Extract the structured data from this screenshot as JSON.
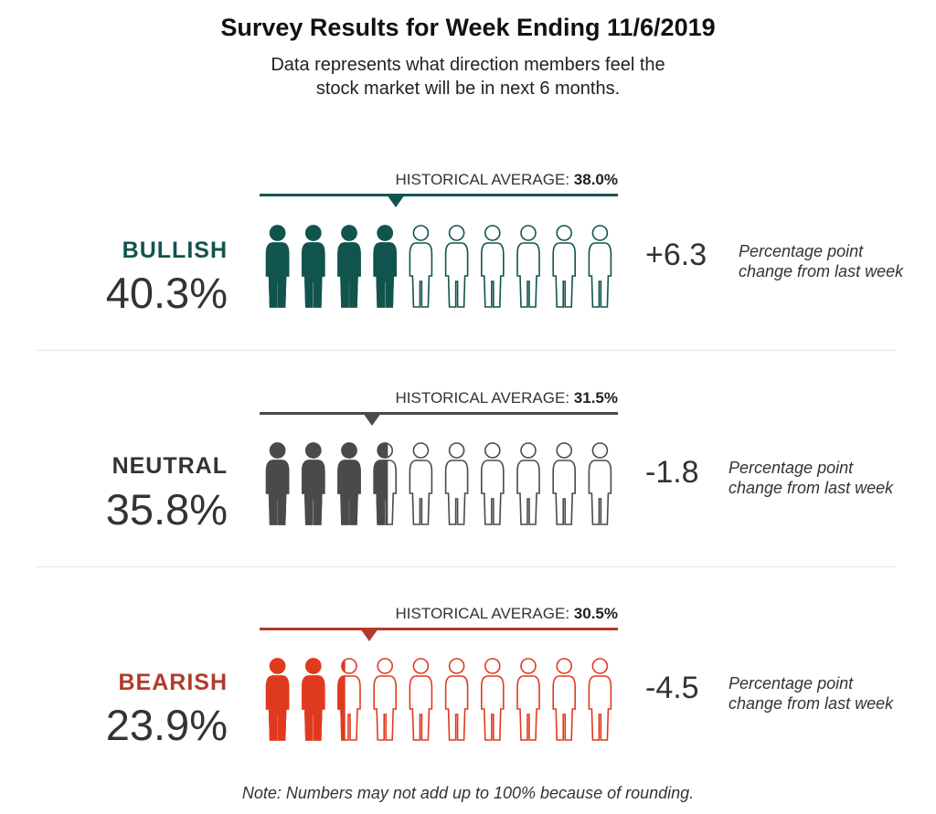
{
  "header": {
    "title": "Survey Results for Week Ending 11/6/2019",
    "subtitle": "Data represents what direction members feel the stock market will be in next 6 months."
  },
  "chart_data": {
    "type": "pictograph",
    "figures_per_row": 10,
    "percent_per_figure": 10,
    "historical_label": "HISTORICAL AVERAGE:",
    "change_note": "Percentage point change from last week",
    "categories": [
      {
        "name": "BULLISH",
        "value": 40.3,
        "value_label": "40.3%",
        "historical_average": 38.0,
        "historical_label_value": "38.0%",
        "change": 6.3,
        "change_label": "+6.3",
        "color": "#11544e"
      },
      {
        "name": "NEUTRAL",
        "value": 35.8,
        "value_label": "35.8%",
        "historical_average": 31.5,
        "historical_label_value": "31.5%",
        "change": -1.8,
        "change_label": "-1.8",
        "color": "#4a4a4a"
      },
      {
        "name": "BEARISH",
        "value": 23.9,
        "value_label": "23.9%",
        "historical_average": 30.5,
        "historical_label_value": "30.5%",
        "change": -4.5,
        "change_label": "-4.5",
        "color": "#e03a1e"
      }
    ]
  },
  "footer": {
    "note": "Note: Numbers may not add up to 100% because of rounding."
  },
  "style": {
    "label_colors": [
      "#11544e",
      "#333333",
      "#b23a2b"
    ],
    "line_colors": [
      "#11544e",
      "#4a4a4a",
      "#b23a2b"
    ]
  }
}
